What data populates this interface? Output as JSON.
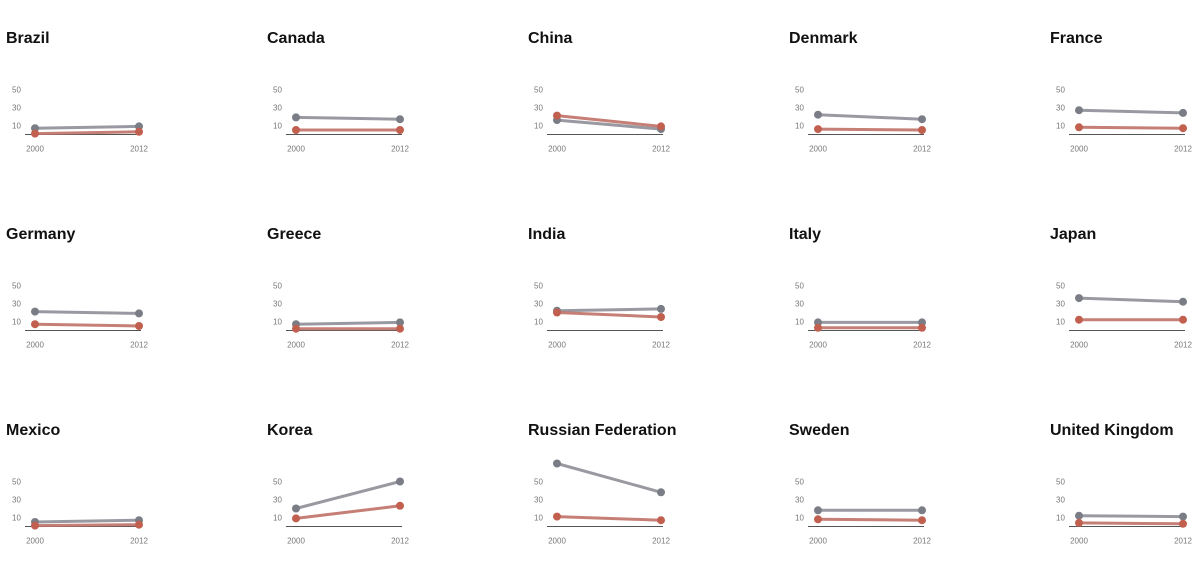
{
  "chart_data": {
    "type": "line",
    "x": [
      "2000",
      "2012"
    ],
    "y_ticks": [
      50,
      30,
      10
    ],
    "ylim": [
      0,
      75
    ],
    "colors": {
      "series_a": "#8f8e98",
      "series_b": "#c07268",
      "marker_a": "#7a7d85",
      "marker_b": "#c26050",
      "baseline": "#555555"
    },
    "grid": false,
    "legend": "none",
    "panels": [
      {
        "title": "Brazil",
        "series": [
          {
            "values": [
              7,
              9
            ]
          },
          {
            "values": [
              1,
              3
            ]
          }
        ]
      },
      {
        "title": "Canada",
        "series": [
          {
            "values": [
              19,
              17
            ]
          },
          {
            "values": [
              5,
              5
            ]
          }
        ]
      },
      {
        "title": "China",
        "series": [
          {
            "values": [
              16,
              6
            ]
          },
          {
            "values": [
              21,
              9
            ]
          }
        ]
      },
      {
        "title": "Denmark",
        "series": [
          {
            "values": [
              22,
              17
            ]
          },
          {
            "values": [
              6,
              5
            ]
          }
        ]
      },
      {
        "title": "France",
        "series": [
          {
            "values": [
              27,
              24
            ]
          },
          {
            "values": [
              8,
              7
            ]
          }
        ]
      },
      {
        "title": "Germany",
        "series": [
          {
            "values": [
              21,
              19
            ]
          },
          {
            "values": [
              7,
              5
            ]
          }
        ]
      },
      {
        "title": "Greece",
        "series": [
          {
            "values": [
              7,
              9
            ]
          },
          {
            "values": [
              2,
              2
            ]
          }
        ]
      },
      {
        "title": "India",
        "series": [
          {
            "values": [
              22,
              24
            ]
          },
          {
            "values": [
              20,
              15
            ]
          }
        ]
      },
      {
        "title": "Italy",
        "series": [
          {
            "values": [
              9,
              9
            ]
          },
          {
            "values": [
              3,
              3
            ]
          }
        ]
      },
      {
        "title": "Japan",
        "series": [
          {
            "values": [
              36,
              32
            ]
          },
          {
            "values": [
              12,
              12
            ]
          }
        ]
      },
      {
        "title": "Mexico",
        "series": [
          {
            "values": [
              5,
              7
            ]
          },
          {
            "values": [
              1,
              2
            ]
          }
        ]
      },
      {
        "title": "Korea",
        "series": [
          {
            "values": [
              20,
              50
            ]
          },
          {
            "values": [
              9,
              23
            ]
          }
        ]
      },
      {
        "title": "Russian Federation",
        "series": [
          {
            "values": [
              70,
              38
            ]
          },
          {
            "values": [
              11,
              7
            ]
          }
        ]
      },
      {
        "title": "Sweden",
        "series": [
          {
            "values": [
              18,
              18
            ]
          },
          {
            "values": [
              8,
              7
            ]
          }
        ]
      },
      {
        "title": "United Kingdom",
        "series": [
          {
            "values": [
              12,
              11
            ]
          },
          {
            "values": [
              4,
              3
            ]
          }
        ]
      }
    ]
  }
}
